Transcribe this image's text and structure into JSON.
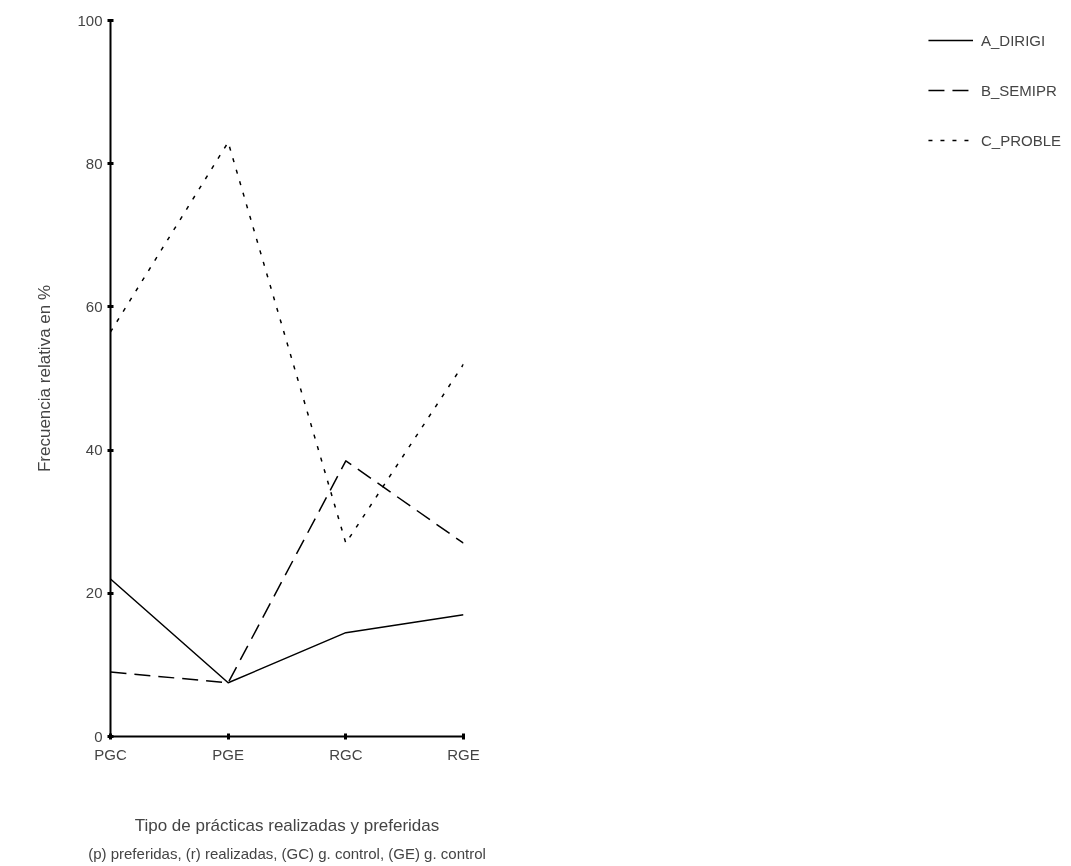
{
  "chart_data": {
    "type": "line",
    "xlabel": "Tipo de prácticas realizadas y preferidas",
    "ylabel": "Frecuencia relativa en %",
    "categories": [
      "PGC",
      "PGE",
      "RGC",
      "RGE"
    ],
    "series": [
      {
        "name": "A_DIRIGI",
        "color": "#000000",
        "line_style": "solid",
        "values": [
          22,
          7.5,
          14.5,
          17
        ]
      },
      {
        "name": "B_SEMIPR",
        "color": "#000000",
        "line_style": "dashed",
        "values": [
          9,
          7.5,
          38.5,
          27
        ]
      },
      {
        "name": "C_PROBLE",
        "color": "#000000",
        "line_style": "dotted",
        "values": [
          56.5,
          83,
          27,
          52
        ]
      }
    ],
    "ylim": [
      0,
      100
    ],
    "yticks": [
      0,
      20,
      40,
      60,
      80,
      100
    ],
    "grid": false,
    "legend": "right",
    "marker": "none",
    "annotations": [
      "(p) preferidas, (r) realizadas, (GC) g. control, (GE) g. control"
    ]
  }
}
